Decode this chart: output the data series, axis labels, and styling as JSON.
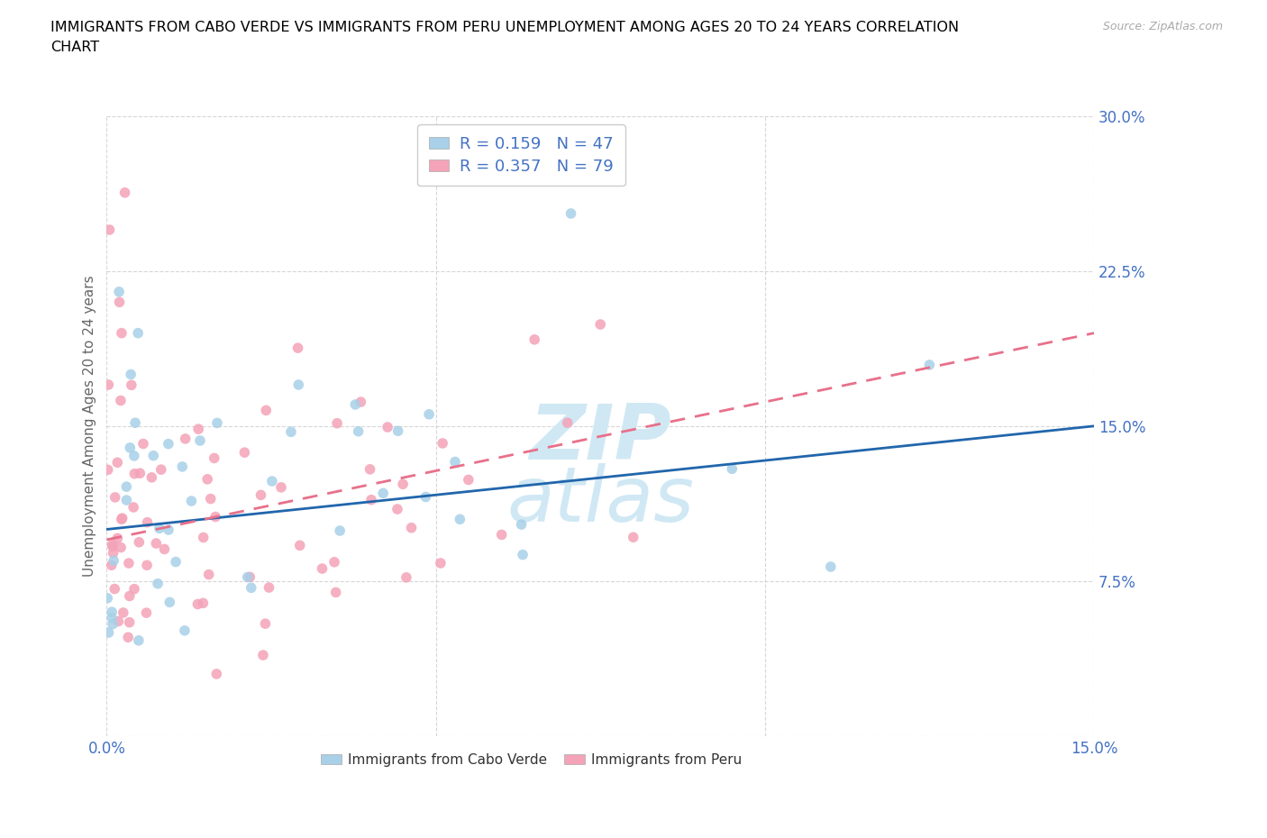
{
  "title": "IMMIGRANTS FROM CABO VERDE VS IMMIGRANTS FROM PERU UNEMPLOYMENT AMONG AGES 20 TO 24 YEARS CORRELATION\nCHART",
  "source_text": "Source: ZipAtlas.com",
  "ylabel": "Unemployment Among Ages 20 to 24 years",
  "xlim": [
    0.0,
    0.15
  ],
  "ylim": [
    0.0,
    0.3
  ],
  "cabo_verde_color": "#a8d0e8",
  "peru_color": "#f4a3b8",
  "cabo_verde_line_color": "#2166ac",
  "peru_line_color": "#e8708a",
  "R_cabo": 0.159,
  "N_cabo": 47,
  "R_peru": 0.357,
  "N_peru": 79,
  "legend_label_cabo": "Immigrants from Cabo Verde",
  "legend_label_peru": "Immigrants from Peru",
  "tick_color": "#4472c4",
  "background_color": "#ffffff",
  "grid_color": "#cccccc",
  "title_color": "#000000",
  "title_fontsize": 11.5,
  "watermark_color": "#d0e8f4"
}
